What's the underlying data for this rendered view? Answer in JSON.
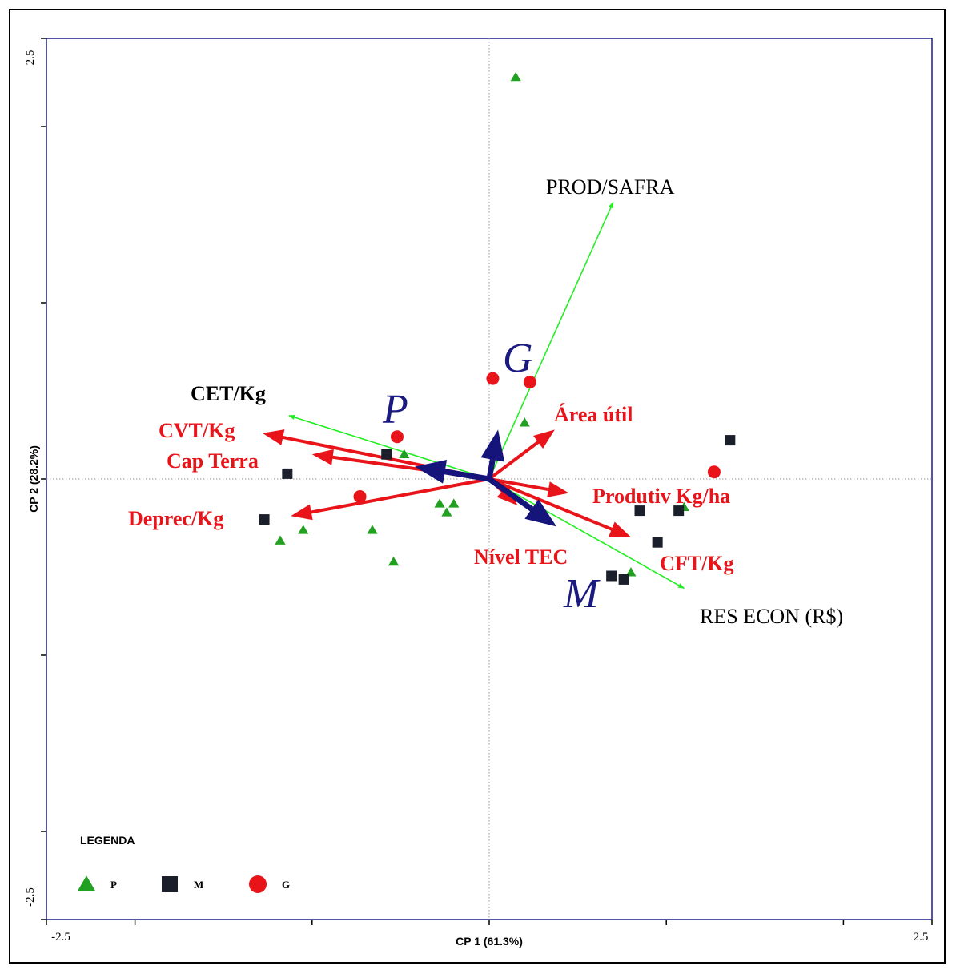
{
  "chart_data": {
    "type": "scatter",
    "subtype": "pca-biplot",
    "xlabel": "CP 1 (61.3%)",
    "ylabel": "CP 2 (28.2%)",
    "xlim": [
      -2.5,
      2.5
    ],
    "ylim": [
      -2.5,
      2.5
    ],
    "x_tick_labels": [
      "-2.5",
      "2.5"
    ],
    "y_tick_labels": [
      "2.5",
      "-2.5"
    ],
    "ticks": [
      -2.5,
      -2.0,
      -1.0,
      0.0,
      1.0,
      2.0,
      2.5
    ],
    "grid": false,
    "origin_crosshair": true,
    "colors": {
      "P": "#22a022",
      "M": "#1a1f2b",
      "G": "#e8141a",
      "red_vector": "#e8141a",
      "green_vector": "#22ee22",
      "group_vector": "#14147a",
      "frame": "#1a1a8a"
    },
    "series": [
      {
        "name": "P",
        "marker": "triangle",
        "color": "#22a022",
        "points": [
          [
            0.15,
            2.28
          ],
          [
            0.2,
            0.32
          ],
          [
            -0.48,
            0.14
          ],
          [
            -0.28,
            -0.14
          ],
          [
            -0.24,
            -0.19
          ],
          [
            -0.2,
            -0.14
          ],
          [
            -0.66,
            -0.29
          ],
          [
            -1.05,
            -0.29
          ],
          [
            -1.18,
            -0.35
          ],
          [
            -0.54,
            -0.47
          ],
          [
            0.8,
            -0.53
          ],
          [
            1.1,
            -0.16
          ]
        ]
      },
      {
        "name": "M",
        "marker": "square",
        "color": "#1a1f2b",
        "points": [
          [
            -0.58,
            0.14
          ],
          [
            -1.14,
            0.03
          ],
          [
            -1.27,
            -0.23
          ],
          [
            0.85,
            -0.18
          ],
          [
            1.07,
            -0.18
          ],
          [
            0.95,
            -0.36
          ],
          [
            0.69,
            -0.55
          ],
          [
            0.76,
            -0.57
          ],
          [
            1.36,
            0.22
          ]
        ]
      },
      {
        "name": "G",
        "marker": "circle",
        "color": "#e8141a",
        "points": [
          [
            0.02,
            0.57
          ],
          [
            0.23,
            0.55
          ],
          [
            -0.52,
            0.24
          ],
          [
            -0.73,
            -0.1
          ],
          [
            1.27,
            0.04
          ]
        ]
      }
    ],
    "vectors": [
      {
        "name": "CET/Kg",
        "group": "green",
        "end": [
          -1.13,
          0.36
        ]
      },
      {
        "name": "PROD/SAFRA",
        "group": "green",
        "end": [
          0.7,
          1.57
        ]
      },
      {
        "name": "RES ECON (R$)",
        "group": "green",
        "end": [
          1.1,
          -0.62
        ]
      },
      {
        "name": "CVT/Kg",
        "group": "red",
        "end": [
          -1.28,
          0.26
        ]
      },
      {
        "name": "Cap Terra",
        "group": "red",
        "end": [
          -1.0,
          0.14
        ]
      },
      {
        "name": "Deprec/Kg",
        "group": "red",
        "end": [
          -1.12,
          -0.21
        ]
      },
      {
        "name": "Área útil",
        "group": "red",
        "end": [
          0.37,
          0.28
        ]
      },
      {
        "name": "Produtiv Kg/ha",
        "group": "red",
        "end": [
          0.45,
          -0.08
        ]
      },
      {
        "name": "CFT/Kg",
        "group": "red",
        "end": [
          0.8,
          -0.33
        ]
      },
      {
        "name": "Nível TEC",
        "group": "red",
        "end": [
          0.16,
          -0.15
        ]
      },
      {
        "name": "P",
        "group": "centroid",
        "end": [
          -0.42,
          0.07
        ]
      },
      {
        "name": "G",
        "group": "centroid",
        "end": [
          0.05,
          0.28
        ]
      },
      {
        "name": "M",
        "group": "centroid",
        "end": [
          0.38,
          -0.27
        ]
      }
    ],
    "legend": {
      "title": "LEGENDA",
      "position": "bottom-left",
      "entries": [
        "P",
        "M",
        "G"
      ]
    }
  }
}
